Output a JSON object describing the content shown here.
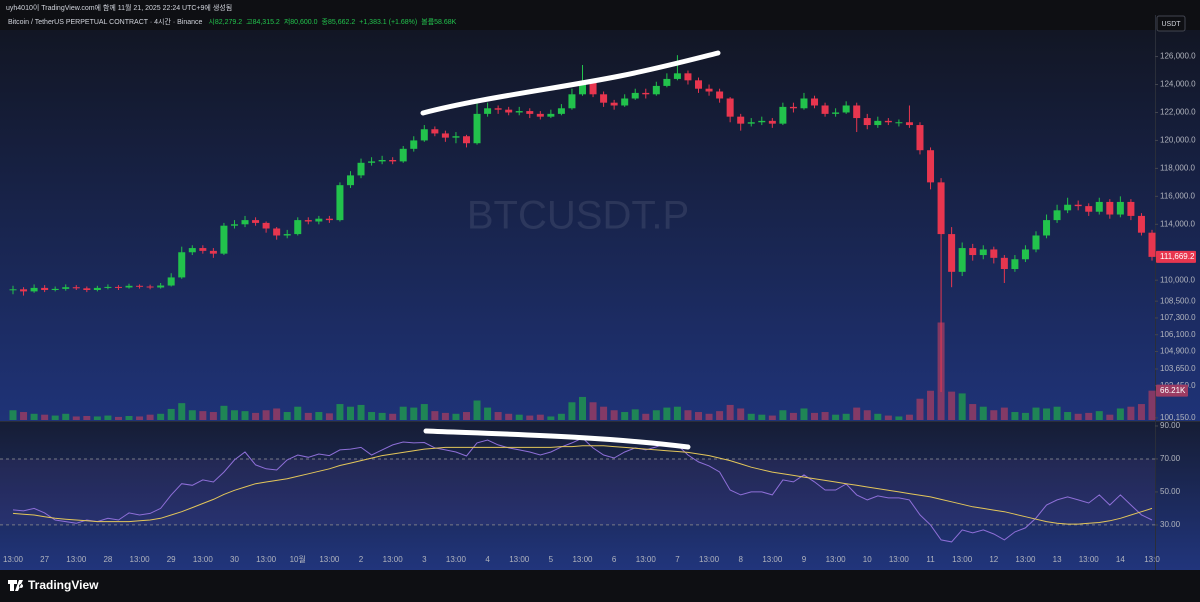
{
  "header": {
    "creator": "uyh4010이 TradingView.com에 함께 11월 21, 2025 22:24 UTC+9에 생성됨",
    "symbol": "Bitcoin / TetherUS PERPETUAL CONTRACT · 4시간 · Binance",
    "open": "시82,279.2",
    "high": "고84,315.2",
    "low": "저80,600.0",
    "close": "종85,662.2",
    "change": "+1,383.1 (+1.68%)",
    "volume": "볼륨58.68K"
  },
  "watermark": "BTCUSDT.P",
  "currency": "USDT",
  "footer": "TradingView",
  "chart_data": [
    {
      "type": "candlestick",
      "categories": [
        "13:00",
        null,
        null,
        "27",
        null,
        null,
        "13:00",
        null,
        null,
        "28",
        null,
        null,
        "13:00",
        null,
        null,
        "29",
        null,
        null,
        "13:00",
        null,
        null,
        "30",
        null,
        null,
        "13:00",
        null,
        null,
        "10월",
        null,
        null,
        "13:00",
        null,
        null,
        "2",
        null,
        null,
        "13:00",
        null,
        null,
        "3",
        null,
        null,
        "13:00",
        null,
        null,
        "4",
        null,
        null,
        "13:00",
        null,
        null,
        "5",
        null,
        null,
        "13:00",
        null,
        null,
        "6",
        null,
        null,
        "13:00",
        null,
        null,
        "7",
        null,
        null,
        "13:00",
        null,
        null,
        "8",
        null,
        null,
        "13:00",
        null,
        null,
        "9",
        null,
        null,
        "13:00",
        null,
        null,
        "10",
        null,
        null,
        "13:00",
        null,
        null,
        "11",
        null,
        null,
        "13:00",
        null,
        null,
        "12",
        null,
        null,
        "13:00",
        null,
        null,
        "13",
        null,
        null,
        "13:00",
        null,
        null,
        "14",
        null,
        null,
        "13:0"
      ],
      "open": [
        109300,
        109350,
        109200,
        109450,
        109300,
        109380,
        109500,
        109420,
        109300,
        109450,
        109520,
        109480,
        109600,
        109550,
        109480,
        109620,
        110200,
        112000,
        112300,
        112100,
        111900,
        113900,
        114000,
        114300,
        114100,
        113700,
        113200,
        113300,
        114300,
        114200,
        114400,
        114300,
        116800,
        117500,
        118400,
        118500,
        118600,
        118500,
        119400,
        120000,
        120800,
        120500,
        120200,
        120300,
        119800,
        121900,
        122300,
        122200,
        122000,
        122100,
        121900,
        121700,
        121900,
        122300,
        123300,
        124200,
        123300,
        122700,
        122500,
        123000,
        123400,
        123300,
        123900,
        124400,
        124800,
        124300,
        123700,
        123500,
        123000,
        121700,
        121200,
        121300,
        121400,
        121200,
        122400,
        122300,
        123000,
        122500,
        121900,
        122000,
        122500,
        121600,
        121100,
        121400,
        121300,
        121300,
        121100,
        119300,
        117000,
        113300,
        110600,
        112300,
        111800,
        112200,
        111600,
        110800,
        111500,
        112200,
        113200,
        114300,
        115000,
        115400,
        115300,
        114900,
        115600,
        114700,
        115600,
        114600,
        113400
      ],
      "high": [
        109600,
        109500,
        109700,
        109650,
        109550,
        109700,
        109650,
        109550,
        109600,
        109700,
        109650,
        109750,
        109700,
        109680,
        109800,
        110500,
        112400,
        112500,
        112500,
        112300,
        114100,
        114300,
        114600,
        114500,
        114200,
        113800,
        113600,
        114500,
        114500,
        114600,
        114600,
        117000,
        117800,
        118700,
        118800,
        118900,
        118800,
        119600,
        120300,
        121100,
        121000,
        120700,
        120600,
        120400,
        123000,
        122700,
        122500,
        122400,
        122400,
        122300,
        122100,
        122200,
        122600,
        123700,
        125400,
        124400,
        123500,
        122900,
        123300,
        123700,
        123700,
        124200,
        124800,
        126100,
        125000,
        124500,
        124000,
        123700,
        123100,
        121900,
        121600,
        121700,
        121600,
        122700,
        122700,
        123400,
        123200,
        122700,
        122300,
        122800,
        122700,
        121900,
        121700,
        121600,
        121500,
        122500,
        121300,
        119500,
        117300,
        113800,
        112700,
        112600,
        112500,
        112400,
        111800,
        111800,
        112500,
        113500,
        114700,
        115400,
        115900,
        115700,
        115500,
        115900,
        115800,
        116000,
        115800,
        114800,
        113600
      ],
      "low": [
        109000,
        108900,
        109100,
        109150,
        109200,
        109250,
        109300,
        109150,
        109200,
        109350,
        109300,
        109400,
        109400,
        109350,
        109400,
        109550,
        110100,
        111800,
        111900,
        111600,
        111800,
        113700,
        113800,
        113900,
        113400,
        112900,
        113000,
        113200,
        114000,
        114000,
        114100,
        114200,
        116600,
        117300,
        118200,
        118300,
        118300,
        118400,
        119200,
        119900,
        120300,
        119900,
        119800,
        119500,
        119700,
        121700,
        121900,
        121800,
        121800,
        121600,
        121500,
        121600,
        121800,
        122200,
        123200,
        123100,
        122400,
        122200,
        122400,
        122900,
        123000,
        123200,
        123800,
        124300,
        124000,
        123400,
        123200,
        122700,
        121300,
        120700,
        121000,
        121100,
        120900,
        121100,
        122000,
        122200,
        122300,
        121700,
        121700,
        121900,
        120600,
        120800,
        120900,
        121100,
        121000,
        120900,
        119000,
        116500,
        102000,
        109500,
        110300,
        111400,
        111500,
        111200,
        109800,
        110600,
        111300,
        112000,
        113000,
        114100,
        114800,
        115000,
        114600,
        114700,
        114400,
        114500,
        114300,
        113200,
        111400
      ],
      "close": [
        109350,
        109200,
        109450,
        109300,
        109380,
        109500,
        109420,
        109300,
        109450,
        109520,
        109480,
        109600,
        109550,
        109480,
        109620,
        110200,
        112000,
        112300,
        112100,
        111900,
        113900,
        114000,
        114300,
        114100,
        113700,
        113200,
        113300,
        114300,
        114200,
        114400,
        114300,
        116800,
        117500,
        118400,
        118500,
        118600,
        118500,
        119400,
        120000,
        120800,
        120500,
        120200,
        120300,
        119800,
        121900,
        122300,
        122200,
        122000,
        122100,
        121900,
        121700,
        121900,
        122300,
        123300,
        124200,
        123300,
        122700,
        122500,
        123000,
        123400,
        123300,
        123900,
        124400,
        124800,
        124300,
        123700,
        123500,
        123000,
        121700,
        121200,
        121300,
        121400,
        121200,
        122400,
        122300,
        123000,
        122500,
        121900,
        122000,
        122500,
        121600,
        121100,
        121400,
        121300,
        121300,
        121100,
        119300,
        117000,
        113300,
        110600,
        112300,
        111800,
        112200,
        111600,
        110800,
        111500,
        112200,
        113200,
        114300,
        115000,
        115400,
        115300,
        114900,
        115600,
        114700,
        115600,
        114600,
        113400,
        111669.2
      ],
      "up_color": "#22c24c",
      "down_color": "#e8364f",
      "ylim": [
        100000,
        127900
      ],
      "yticks": [
        {
          "value": 126000,
          "label": "126,000.0"
        },
        {
          "value": 124000,
          "label": "124,000.0"
        },
        {
          "value": 122000,
          "label": "122,000.0"
        },
        {
          "value": 120000,
          "label": "120,000.0"
        },
        {
          "value": 118000,
          "label": "118,000.0"
        },
        {
          "value": 116000,
          "label": "116,000.0"
        },
        {
          "value": 114000,
          "label": "114,000.0"
        },
        {
          "value": 110000,
          "label": "110,000.0"
        },
        {
          "value": 108500,
          "label": "108,500.0"
        },
        {
          "value": 107300,
          "label": "107,300.0"
        },
        {
          "value": 106100,
          "label": "106,100.0"
        },
        {
          "value": 104900,
          "label": "104,900.0"
        },
        {
          "value": 103650,
          "label": "103,650.0"
        },
        {
          "value": 102450,
          "label": "102,450.0"
        },
        {
          "value": 100150,
          "label": "100,150.0"
        }
      ],
      "last_price": {
        "value": 111669.2,
        "label": "111,669.2"
      },
      "volume": {
        "values": [
          22000,
          18000,
          14000,
          12000,
          10000,
          14000,
          8000,
          9000,
          8000,
          10000,
          7000,
          9000,
          8000,
          12000,
          14000,
          25000,
          38000,
          22000,
          20000,
          18000,
          32000,
          22000,
          20000,
          16000,
          22000,
          26000,
          18000,
          30000,
          16000,
          18000,
          15000,
          36000,
          30000,
          34000,
          18000,
          16000,
          14000,
          30000,
          28000,
          36000,
          20000,
          16000,
          14000,
          18000,
          44000,
          28000,
          18000,
          14000,
          12000,
          10000,
          12000,
          8000,
          14000,
          40000,
          52000,
          40000,
          30000,
          22000,
          18000,
          24000,
          14000,
          22000,
          28000,
          30000,
          22000,
          18000,
          14000,
          20000,
          34000,
          26000,
          14000,
          12000,
          10000,
          22000,
          16000,
          26000,
          16000,
          18000,
          12000,
          14000,
          28000,
          22000,
          14000,
          10000,
          8000,
          12000,
          48000,
          66000,
          220000,
          64000,
          60000,
          36000,
          30000,
          22000,
          28000,
          18000,
          16000,
          28000,
          26000,
          30000,
          18000,
          14000,
          16000,
          20000,
          12000,
          26000,
          30000,
          36000,
          66210
        ],
        "last_label": "66.21K",
        "up_color": "#1f9a4e",
        "down_color": "#9c3c63",
        "ylim": [
          0,
          880000
        ]
      }
    },
    {
      "type": "line",
      "series": [
        {
          "color": "#8e6fd8",
          "values": [
            39.1,
            38.5,
            40,
            37.3,
            33,
            32,
            31,
            33,
            32,
            34,
            33,
            37.3,
            36,
            37,
            40,
            48.2,
            55,
            54,
            57.3,
            56,
            62,
            69.4,
            74.2,
            66.4,
            64,
            63.3,
            69.4,
            72.4,
            71,
            73,
            72,
            75.5,
            76,
            77,
            72.4,
            75.5,
            78.5,
            80.3,
            79.7,
            80,
            76.7,
            75.5,
            74.2,
            71.8,
            79.7,
            81.5,
            78.5,
            76.7,
            75.5,
            74.2,
            72.4,
            74.2,
            77.3,
            79.7,
            82.7,
            76.7,
            72.4,
            70.6,
            74.2,
            76.7,
            75.5,
            77.3,
            79.7,
            78.5,
            72.4,
            68.2,
            65.8,
            62.1,
            51.2,
            48.2,
            50,
            50,
            48.2,
            57.3,
            56.1,
            60.3,
            56.1,
            51.2,
            51.2,
            54.8,
            48.2,
            45.2,
            47.6,
            46.4,
            46.4,
            45.2,
            36.1,
            30,
            20.9,
            19.7,
            27,
            25.2,
            27,
            24.5,
            20.9,
            25.8,
            28.2,
            34.2,
            42.1,
            45.2,
            47,
            45.2,
            43.3,
            48.2,
            42.1,
            48.2,
            42.1,
            36.1,
            33
          ]
        },
        {
          "color": "#e3c65a",
          "values": [
            37,
            36.5,
            36,
            35,
            34,
            33.5,
            33,
            32.5,
            32,
            32,
            32,
            32,
            32.5,
            33,
            34,
            36,
            38,
            40.5,
            43,
            45.5,
            48.5,
            51,
            53,
            55,
            56,
            57,
            58,
            59.5,
            61,
            62.5,
            64,
            66,
            67.5,
            69,
            70.5,
            72,
            73,
            74,
            75,
            76,
            76.5,
            77,
            77,
            77,
            77,
            77,
            77,
            77,
            77,
            77,
            77,
            77,
            77.5,
            77.5,
            78,
            78,
            78,
            77.5,
            77,
            76.5,
            76,
            75.5,
            75,
            74.5,
            74,
            73,
            72,
            70.5,
            69,
            67,
            65,
            63.5,
            62,
            61,
            60,
            59,
            58,
            57,
            56,
            55,
            54,
            53,
            52,
            51,
            50,
            49,
            48,
            47,
            45.5,
            44,
            42.5,
            41,
            40,
            39,
            38,
            36.5,
            35,
            33.5,
            32,
            31,
            30.5,
            30.5,
            31,
            31.5,
            32.5,
            34,
            36,
            38,
            40
          ]
        }
      ],
      "ylim": [
        14.8,
        92.4
      ],
      "yticks": [
        {
          "value": 90,
          "label": "90.00"
        },
        {
          "value": 70,
          "label": "70.00"
        },
        {
          "value": 50,
          "label": "50.00"
        },
        {
          "value": 30,
          "label": "30.00"
        }
      ],
      "band": [
        30,
        70
      ]
    }
  ]
}
